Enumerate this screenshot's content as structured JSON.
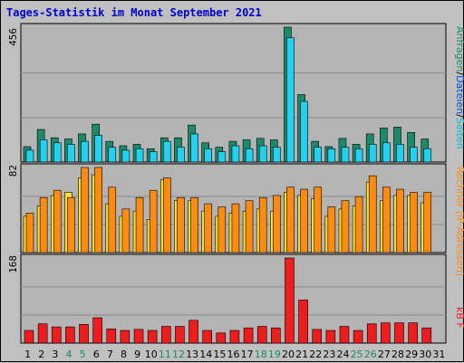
{
  "title": "Tages-Statistik im Monat September 2021",
  "colors": {
    "background": "#c0c0c0",
    "plot_bg": "#b4b4b4",
    "anfragen": "#1b8a6b",
    "dateien": "#22d0f0",
    "seiten": "#00bcd4",
    "besuche": "#ffe020",
    "rechner": "#ff8c10",
    "kbf": "#ee1c1c",
    "weekend_label": "#1b8a6b",
    "weekday_label": "#000000"
  },
  "chart_data": [
    {
      "type": "bar",
      "panel": "top",
      "ymax_label": "456",
      "ylim": [
        0,
        456
      ],
      "categories": [
        "1",
        "2",
        "3",
        "4",
        "5",
        "6",
        "7",
        "8",
        "9",
        "10",
        "11",
        "12",
        "13",
        "14",
        "15",
        "16",
        "17",
        "18",
        "19",
        "20",
        "21",
        "22",
        "23",
        "24",
        "25",
        "26",
        "27",
        "28",
        "29",
        "30",
        "31"
      ],
      "weekend": [
        "4",
        "5",
        "11",
        "12",
        "18",
        "19",
        "25",
        "26"
      ],
      "side_label": {
        "anfragen": "Anfragen",
        "sep1": "/",
        "dateien": "Dateien",
        "sep2": "/",
        "seiten": "Seiten"
      },
      "series": [
        {
          "name": "Anfragen",
          "values": [
            52,
            110,
            82,
            78,
            95,
            128,
            70,
            55,
            60,
            45,
            82,
            82,
            125,
            65,
            50,
            70,
            75,
            80,
            75,
            456,
            228,
            70,
            52,
            80,
            60,
            95,
            115,
            118,
            100,
            78,
            0
          ]
        },
        {
          "name": "Dateien",
          "values": [
            40,
            75,
            65,
            60,
            70,
            90,
            50,
            40,
            45,
            35,
            70,
            50,
            95,
            45,
            35,
            55,
            45,
            55,
            50,
            420,
            205,
            50,
            45,
            50,
            45,
            60,
            65,
            60,
            50,
            45,
            0
          ]
        },
        {
          "name": "Seiten",
          "values": [
            0,
            0,
            0,
            0,
            0,
            0,
            0,
            0,
            0,
            0,
            0,
            0,
            0,
            0,
            0,
            0,
            0,
            0,
            0,
            0,
            0,
            0,
            0,
            0,
            0,
            0,
            0,
            0,
            0,
            0,
            0
          ]
        }
      ]
    },
    {
      "type": "bar",
      "panel": "middle",
      "ymax_label": "82",
      "ylim": [
        0,
        82
      ],
      "categories": [
        "1",
        "2",
        "3",
        "4",
        "5",
        "6",
        "7",
        "8",
        "9",
        "10",
        "11",
        "12",
        "13",
        "14",
        "15",
        "16",
        "17",
        "18",
        "19",
        "20",
        "21",
        "22",
        "23",
        "24",
        "25",
        "26",
        "27",
        "28",
        "29",
        "30",
        "31"
      ],
      "side_label": {
        "rechner": "Rechner",
        "rest": " (IP-Adressen)"
      },
      "series": [
        {
          "name": "Besuche",
          "values": [
            35,
            45,
            55,
            58,
            72,
            75,
            47,
            35,
            40,
            32,
            70,
            50,
            50,
            40,
            35,
            38,
            40,
            42,
            40,
            58,
            55,
            52,
            35,
            42,
            45,
            68,
            50,
            55,
            55,
            48,
            0
          ]
        },
        {
          "name": "Rechner",
          "values": [
            38,
            53,
            60,
            53,
            82,
            82,
            63,
            42,
            53,
            60,
            72,
            53,
            53,
            47,
            44,
            47,
            50,
            53,
            55,
            63,
            61,
            63,
            44,
            50,
            54,
            74,
            63,
            61,
            58,
            58,
            0
          ]
        }
      ]
    },
    {
      "type": "bar",
      "panel": "bottom",
      "ymax_label": "168",
      "ylim": [
        0,
        168
      ],
      "categories": [
        "1",
        "2",
        "3",
        "4",
        "5",
        "6",
        "7",
        "8",
        "9",
        "10",
        "11",
        "12",
        "13",
        "14",
        "15",
        "16",
        "17",
        "18",
        "19",
        "20",
        "21",
        "22",
        "23",
        "24",
        "25",
        "26",
        "27",
        "28",
        "29",
        "30",
        "31"
      ],
      "side_label": "kB F",
      "series": [
        {
          "name": "kB F",
          "values": [
            25,
            38,
            32,
            32,
            37,
            50,
            28,
            25,
            27,
            25,
            33,
            33,
            45,
            25,
            20,
            25,
            30,
            33,
            30,
            168,
            85,
            27,
            25,
            33,
            25,
            38,
            40,
            40,
            40,
            30,
            0
          ]
        }
      ]
    }
  ]
}
